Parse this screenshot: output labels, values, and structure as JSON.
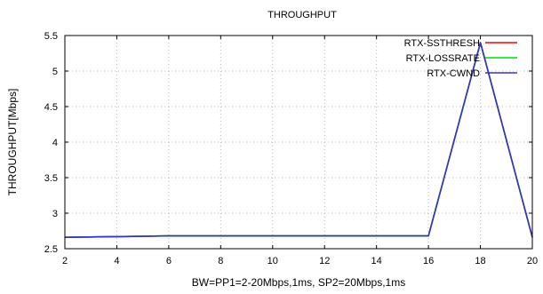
{
  "chart_data": {
    "type": "line",
    "title": "THROUGHPUT",
    "xlabel": "BW=PP1=2-20Mbps,1ms, SP2=20Mbps,1ms",
    "ylabel": "THROUGHPUT[Mbps]",
    "xlim": [
      2,
      20
    ],
    "ylim": [
      2.5,
      5.5
    ],
    "xticks": [
      2,
      4,
      6,
      8,
      10,
      12,
      14,
      16,
      18,
      20
    ],
    "yticks": [
      2.5,
      3,
      3.5,
      4,
      4.5,
      5,
      5.5
    ],
    "ytick_labels": [
      "2.5",
      "3",
      "3.5",
      "4",
      "4.5",
      "5",
      "5.5"
    ],
    "grid": true,
    "legend_position": "top-right",
    "x": [
      2,
      4,
      6,
      8,
      10,
      12,
      14,
      16,
      18,
      20
    ],
    "series": [
      {
        "name": "RTX-SSTHRESH",
        "color": "#ff0000",
        "values": [
          2.66,
          2.67,
          2.68,
          2.68,
          2.68,
          2.68,
          2.68,
          2.68,
          5.4,
          2.66
        ]
      },
      {
        "name": "RTX-LOSSRATE",
        "color": "#00dd00",
        "values": [
          2.66,
          2.67,
          2.68,
          2.68,
          2.68,
          2.68,
          2.68,
          2.68,
          5.4,
          2.66
        ]
      },
      {
        "name": "RTX-CWND",
        "color": "#3333cc",
        "values": [
          2.66,
          2.67,
          2.68,
          2.68,
          2.68,
          2.68,
          2.68,
          2.68,
          5.4,
          2.66
        ]
      }
    ]
  }
}
